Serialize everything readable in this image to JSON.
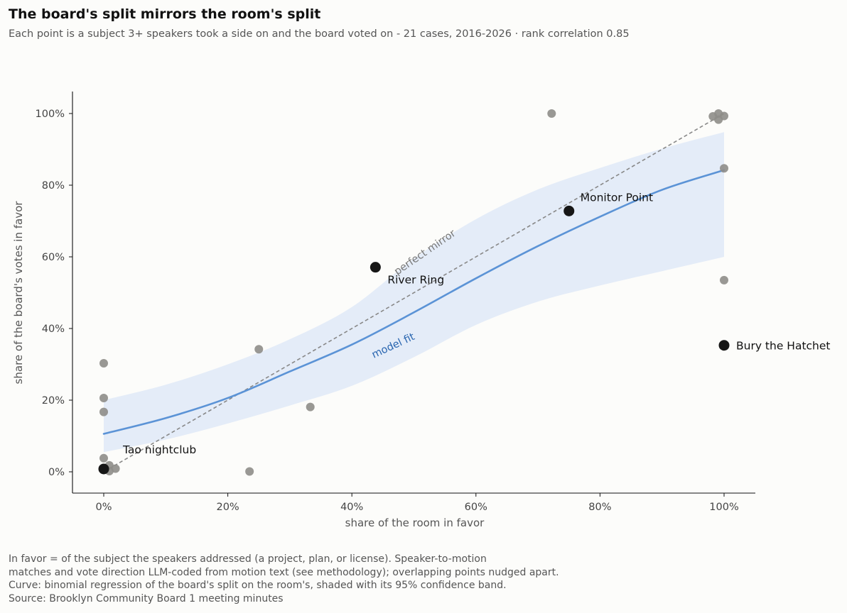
{
  "title": "The board's split mirrors the room's split",
  "subtitle": "Each point is a subject 3+ speakers took a side on and the board voted on - 21 cases, 2016-2026 · rank correlation 0.85",
  "footer": [
    "In favor = of the subject the speakers addressed (a project, plan, or license). Speaker-to-motion",
    "matches and vote direction LLM-coded from motion text (see methodology); overlapping points nudged apart.",
    "Curve: binomial regression of the board's split on the room's, shaded with its 95% confidence band.",
    "Source: Brooklyn Community Board 1 meeting minutes"
  ],
  "chart_data": {
    "type": "scatter",
    "xlabel": "share of the room in favor",
    "ylabel": "share of the board's votes in favor",
    "xlim": [
      -0.05,
      1.05
    ],
    "ylim": [
      -0.06,
      1.06
    ],
    "x_ticks": [
      0,
      0.2,
      0.4,
      0.6,
      0.8,
      1.0
    ],
    "x_tick_labels": [
      "0%",
      "20%",
      "40%",
      "60%",
      "80%",
      "100%"
    ],
    "y_ticks": [
      0,
      0.2,
      0.4,
      0.6,
      0.8,
      1.0
    ],
    "y_tick_labels": [
      "0%",
      "20%",
      "40%",
      "60%",
      "80%",
      "100%"
    ],
    "grid": false,
    "colors": {
      "point": "#8e8d88",
      "highlight": "#161616",
      "fit_line": "#5b93d6",
      "band": "#e4ecf8",
      "mirror_line": "#888888"
    },
    "points": [
      {
        "x": 0.0,
        "y": 0.303
      },
      {
        "x": 0.0,
        "y": 0.206
      },
      {
        "x": 0.0,
        "y": 0.167
      },
      {
        "x": 0.0,
        "y": 0.038
      },
      {
        "x": 0.009,
        "y": 0.018
      },
      {
        "x": 0.009,
        "y": 0.002
      },
      {
        "x": 0.019,
        "y": 0.009
      },
      {
        "x": 0.235,
        "y": 0.001
      },
      {
        "x": 0.25,
        "y": 0.342
      },
      {
        "x": 0.333,
        "y": 0.181
      },
      {
        "x": 0.722,
        "y": 1.0
      },
      {
        "x": 0.982,
        "y": 0.992
      },
      {
        "x": 0.991,
        "y": 1.0
      },
      {
        "x": 0.991,
        "y": 0.983
      },
      {
        "x": 1.0,
        "y": 0.993
      },
      {
        "x": 1.0,
        "y": 0.847
      },
      {
        "x": 1.0,
        "y": 0.535
      }
    ],
    "highlighted": [
      {
        "label": "Tao nightclub",
        "x": 0.0,
        "y": 0.008,
        "label_pos": "right-up"
      },
      {
        "label": "River Ring",
        "x": 0.438,
        "y": 0.571,
        "label_pos": "below-right"
      },
      {
        "label": "Monitor Point",
        "x": 0.75,
        "y": 0.728,
        "label_pos": "above-right"
      },
      {
        "label": "Bury the Hatchet",
        "x": 1.0,
        "y": 0.353,
        "label_pos": "right"
      }
    ],
    "mirror_line": {
      "label": "perfect mirror",
      "x": [
        0,
        1
      ],
      "y": [
        0,
        1
      ]
    },
    "model_fit": {
      "label": "model fit",
      "x": [
        0.0,
        0.1,
        0.2,
        0.3,
        0.4,
        0.5,
        0.6,
        0.7,
        0.8,
        0.9,
        1.0
      ],
      "y": [
        0.106,
        0.15,
        0.206,
        0.28,
        0.355,
        0.445,
        0.54,
        0.63,
        0.712,
        0.787,
        0.842
      ],
      "lower": [
        0.055,
        0.09,
        0.135,
        0.185,
        0.24,
        0.32,
        0.41,
        0.475,
        0.52,
        0.56,
        0.6
      ],
      "upper": [
        0.2,
        0.243,
        0.3,
        0.37,
        0.46,
        0.595,
        0.705,
        0.788,
        0.848,
        0.902,
        0.948
      ]
    }
  }
}
